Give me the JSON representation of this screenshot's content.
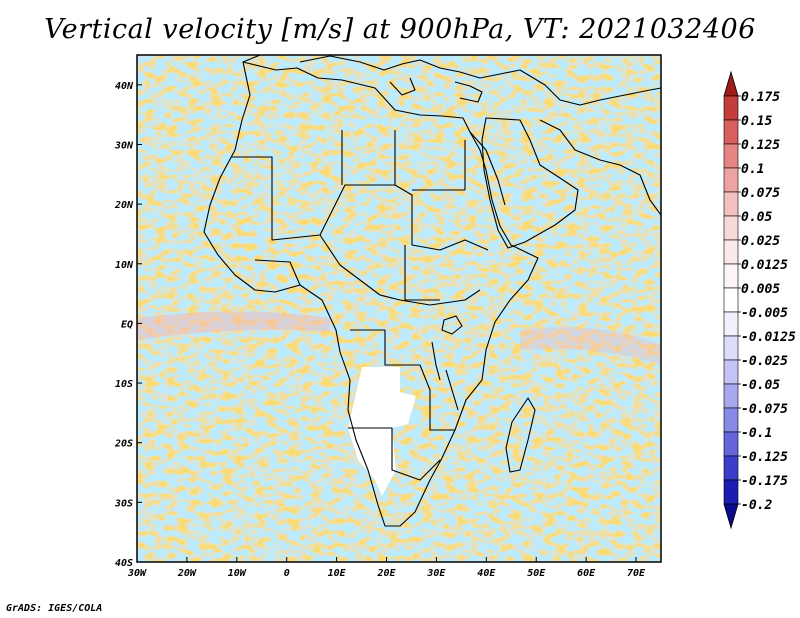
{
  "title": "Vertical velocity [m/s] at 900hPa, VT: 2021032406",
  "credit": "GrADS: IGES/COLA",
  "map": {
    "lon_range": [
      -30,
      75
    ],
    "lat_range": [
      -40,
      45
    ],
    "x_ticks": [
      "30W",
      "20W",
      "10W",
      "0",
      "10E",
      "20E",
      "30E",
      "40E",
      "50E",
      "60E",
      "70E"
    ],
    "x_tick_values": [
      -30,
      -20,
      -10,
      0,
      10,
      20,
      30,
      40,
      50,
      60,
      70
    ],
    "y_ticks": [
      "40S",
      "30S",
      "20S",
      "10S",
      "EQ",
      "10N",
      "20N",
      "30N",
      "40N"
    ],
    "y_tick_values": [
      -40,
      -30,
      -20,
      -10,
      0,
      10,
      20,
      30,
      40
    ]
  },
  "colorbar": {
    "labels": [
      "0.175",
      "0.15",
      "0.125",
      "0.1",
      "0.075",
      "0.05",
      "0.025",
      "0.0125",
      "0.005",
      "-0.005",
      "-0.0125",
      "-0.025",
      "-0.05",
      "-0.075",
      "-0.1",
      "-0.125",
      "-0.175",
      "-0.2"
    ],
    "colors": [
      "#a31a1a",
      "#c43c3c",
      "#d95f5f",
      "#e78585",
      "#eea3a3",
      "#f4c1c1",
      "#f8d8d8",
      "#fbe8e8",
      "#fdf5f5",
      "#ffffff",
      "#f0f0ff",
      "#dcdcfb",
      "#c3c3f5",
      "#a8a8ee",
      "#8888e6",
      "#6565dc",
      "#3d3dcc",
      "#1c1cb2",
      "#0a0a8c"
    ]
  }
}
